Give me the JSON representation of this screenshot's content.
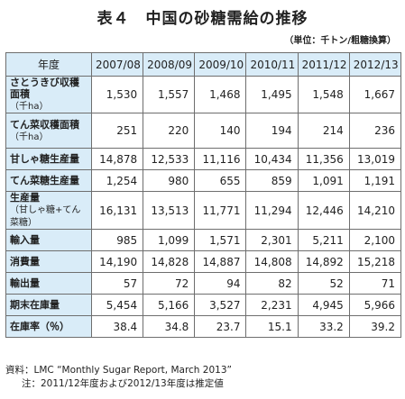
{
  "title": "表４　中国の砂糖需給の推移",
  "unit": "（単位：千トン/粗糖換算）",
  "table": {
    "headers": [
      "年度",
      "2007/08",
      "2008/09",
      "2009/10",
      "2010/11",
      "2011/12",
      "2012/13"
    ],
    "rows": [
      {
        "label": "さとうきび収穫面積",
        "sub": "（千ha）",
        "values": [
          "1,530",
          "1,557",
          "1,468",
          "1,495",
          "1,548",
          "1,667"
        ]
      },
      {
        "label": "てん菜収穫面積",
        "sub": "（千ha）",
        "values": [
          "251",
          "220",
          "140",
          "194",
          "214",
          "236"
        ]
      },
      {
        "label": "甘しゃ糖生産量",
        "sub": "",
        "values": [
          "14,878",
          "12,533",
          "11,116",
          "10,434",
          "11,356",
          "13,019"
        ]
      },
      {
        "label": "てん菜糖生産量",
        "sub": "",
        "values": [
          "1,254",
          "980",
          "655",
          "859",
          "1,091",
          "1,191"
        ]
      },
      {
        "label": "生産量",
        "sub": "（甘しゃ糖+てん菜糖）",
        "values": [
          "16,131",
          "13,513",
          "11,771",
          "11,294",
          "12,446",
          "14,210"
        ]
      },
      {
        "label": "輸入量",
        "sub": "",
        "values": [
          "985",
          "1,099",
          "1,571",
          "2,301",
          "5,211",
          "2,100"
        ]
      },
      {
        "label": "消費量",
        "sub": "",
        "values": [
          "14,190",
          "14,828",
          "14,887",
          "14,808",
          "14,892",
          "15,218"
        ]
      },
      {
        "label": "輸出量",
        "sub": "",
        "values": [
          "57",
          "72",
          "94",
          "82",
          "52",
          "71"
        ]
      },
      {
        "label": "期末在庫量",
        "sub": "",
        "values": [
          "5,454",
          "5,166",
          "3,527",
          "2,231",
          "4,945",
          "5,966"
        ]
      },
      {
        "label": "在庫率（％）",
        "sub": "",
        "values": [
          "38.4",
          "34.8",
          "23.7",
          "15.1",
          "33.2",
          "39.2"
        ]
      }
    ]
  },
  "notes": {
    "source": "資料：LMC “Monthly Sugar Report, March 2013”",
    "note": "注：2011/12年度および2012/13年度は推定値"
  }
}
